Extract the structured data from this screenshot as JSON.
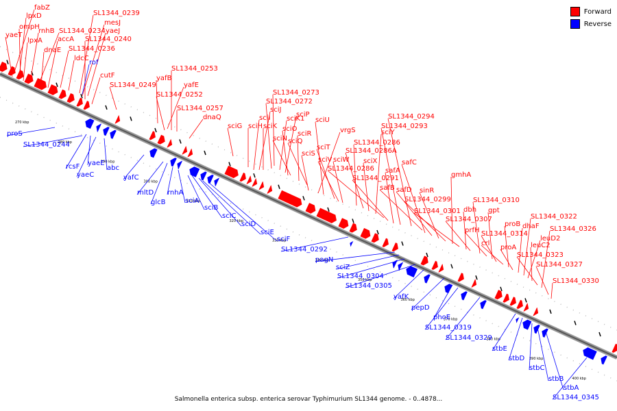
{
  "legend": {
    "forward": "Forward",
    "reverse": "Reverse"
  },
  "colors": {
    "forward": "#ff0000",
    "reverse": "#0000ff",
    "backbone": "#555555"
  },
  "caption": "Salmonella enterica subsp. enterica serovar Typhimurium SL1344 genome. - 0..4878...",
  "ticks": [
    "270 kbp",
    "280 kbp",
    "290 kbp",
    "300 kbp",
    "310 kbp",
    "320 kbp",
    "330 kbp",
    "340 kbp",
    "350 kbp",
    "360 kbp",
    "370 kbp",
    "380 kbp",
    "390 kbp",
    "400 kbp"
  ],
  "forward_labels": [
    "fabZ",
    "lpxD",
    "ompH",
    "yaeT",
    "lpxA",
    "rnhB",
    "SL1344_0234",
    "dnaE",
    "accA",
    "SL1344_0236",
    "ldcC",
    "SL1344_0239",
    "mesJ",
    "yaeJ",
    "SL1344_0240",
    "cutF",
    "SL1344_0249",
    "yafB",
    "yafE",
    "SL1344_0252",
    "SL1344_0253",
    "SL1344_0257",
    "dnaQ",
    "sciG",
    "sciH",
    "sciI",
    "sciJ",
    "sciK",
    "SL1344_0272",
    "SL1344_0273",
    "sciK1",
    "sciP",
    "sciO",
    "sciN",
    "sciR",
    "sciQ",
    "sciS",
    "vrgS",
    "sciU",
    "sciT",
    "sciV",
    "sciW",
    "SL1344_0286",
    "SL1344_0286A",
    "sciX",
    "sciY",
    "SL1344_0286",
    "SL1344_0291",
    "safA",
    "SL1344_0293",
    "SL1344_0294",
    "safB",
    "safC",
    "safD",
    "sinR",
    "SL1344_0299",
    "gmhA",
    "SL1344_0301",
    "dbh",
    "SL1344_0307",
    "SL1344_0310",
    "prfH",
    "gpt",
    "SL1344_0314",
    "crl",
    "proB",
    "proA",
    "dhaF",
    "SL1344_0322",
    "leuD2",
    "leuC2",
    "SL1344_0323",
    "SL1344_0326",
    "SL1344_0327",
    "SL1344_0330"
  ],
  "reverse_labels": [
    "rof",
    "proS",
    "SL1344_0244",
    "rcsF",
    "yaeE",
    "yaeC",
    "abc",
    "yafC",
    "mltD",
    "glcB",
    "rnhA",
    "sciA",
    "sciB",
    "sciC",
    "sciD",
    "sciE",
    "sciF",
    "SL1344_0292",
    "pagN",
    "sciZ",
    "SL1344_0304",
    "SL1344_0305",
    "yafK",
    "pepD",
    "phoE",
    "SL1344_0319",
    "SL1344_0329",
    "stbE",
    "stbD",
    "stbC",
    "stbB",
    "stbA",
    "SL1344_0345"
  ]
}
